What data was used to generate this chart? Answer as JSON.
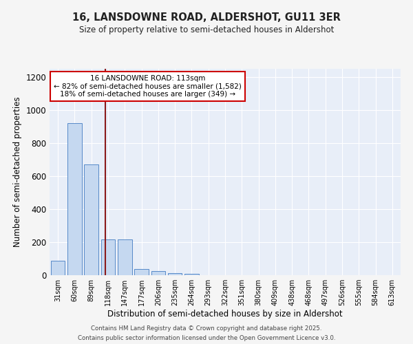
{
  "title1": "16, LANSDOWNE ROAD, ALDERSHOT, GU11 3ER",
  "title2": "Size of property relative to semi-detached houses in Aldershot",
  "xlabel": "Distribution of semi-detached houses by size in Aldershot",
  "ylabel": "Number of semi-detached properties",
  "bar_labels": [
    "31sqm",
    "60sqm",
    "89sqm",
    "118sqm",
    "147sqm",
    "177sqm",
    "206sqm",
    "235sqm",
    "264sqm",
    "293sqm",
    "322sqm",
    "351sqm",
    "380sqm",
    "409sqm",
    "438sqm",
    "468sqm",
    "497sqm",
    "526sqm",
    "555sqm",
    "584sqm",
    "613sqm"
  ],
  "bar_values": [
    88,
    920,
    670,
    215,
    215,
    38,
    25,
    12,
    10,
    0,
    0,
    0,
    0,
    0,
    0,
    0,
    0,
    0,
    0,
    0,
    0
  ],
  "bar_color": "#c5d8f0",
  "bar_edge_color": "#5589c8",
  "bg_color": "#e8eef8",
  "grid_color": "#ffffff",
  "vline_x": 2.82,
  "vline_color": "#8b1a1a",
  "annotation_title": "16 LANSDOWNE ROAD: 113sqm",
  "annotation_line1": "← 82% of semi-detached houses are smaller (1,582)",
  "annotation_line2": "18% of semi-detached houses are larger (349) →",
  "annotation_box_color": "#ffffff",
  "annotation_border_color": "#cc0000",
  "ylim": [
    0,
    1250
  ],
  "yticks": [
    0,
    200,
    400,
    600,
    800,
    1000,
    1200
  ],
  "footnote1": "Contains HM Land Registry data © Crown copyright and database right 2025.",
  "footnote2": "Contains public sector information licensed under the Open Government Licence v3.0."
}
